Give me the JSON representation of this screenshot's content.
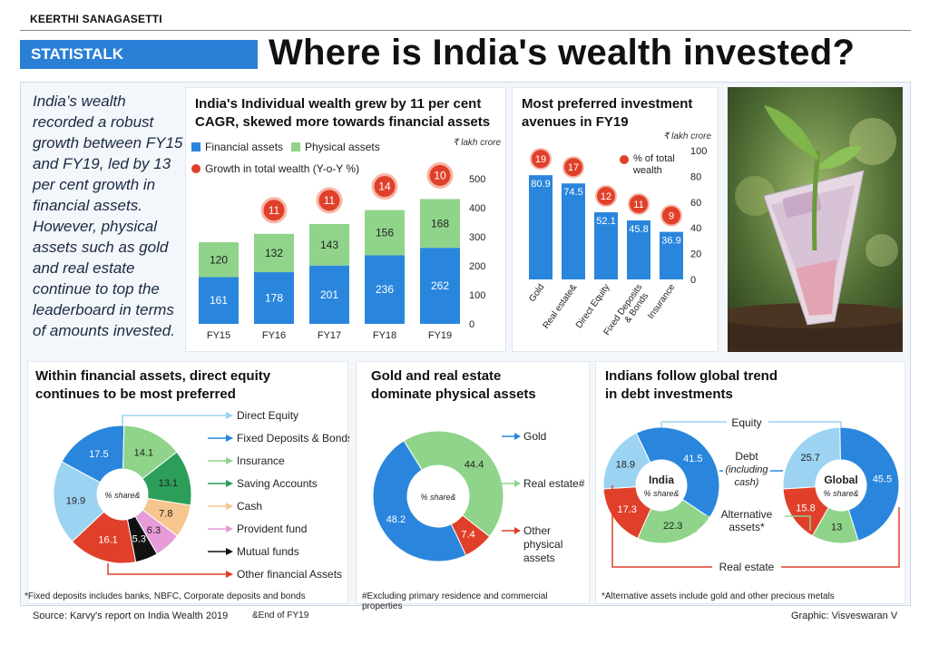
{
  "byline": "KEERTHI SANAGASETTI",
  "tag": "STATISTALK",
  "headline": "Where is India's wealth invested?",
  "intro": "India’s wealth recorded a robust growth between FY15 and FY19, led by 13 per cent growth in financial assets. However, physical assets such as gold and real estate continue to top the leaderboard in terms of amounts invested.",
  "colors": {
    "blue": "#2a86dd",
    "green": "#8fd48a",
    "red": "#e0402a",
    "lightblue": "#9cd3f2",
    "darkgreen": "#2c9e5a",
    "peach": "#f7c58e",
    "pink": "#e79bd9",
    "black": "#111111"
  },
  "panel1": {
    "title_line1": "India's Individual wealth grew by 11 per cent",
    "title_line2": "CAGR, skewed more towards financial assets",
    "legend_financial": "Financial assets",
    "legend_physical": "Physical assets",
    "legend_growth": "Growth in total wealth (Y-o-Y %)",
    "unit": "₹ lakh crore"
  },
  "panel2": {
    "title_line1": "Most preferred investment",
    "title_line2": "avenues in FY19",
    "unit": "₹ lakh crore",
    "legend_line1": "% of total",
    "legend_line2": "wealth"
  },
  "panel3": {
    "title_line1": "Within financial assets, direct equity",
    "title_line2": "continues to be most preferred",
    "center": "% share",
    "center_mark": "&",
    "footnote": "*Fixed deposits includes banks, NBFC, Corporate deposits and bonds"
  },
  "panel4": {
    "title_line1": "Gold and real estate",
    "title_line2": "dominate physical assets",
    "center": "% share",
    "center_mark": "&",
    "footnote": "#Excluding primary residence and commercial properties"
  },
  "panel5": {
    "title_line1": "Indians follow global trend",
    "title_line2": "in debt investments",
    "footnote": "*Alternative assets include gold and other precious metals",
    "india_label": "India",
    "global_label": "Global",
    "share_label": "% share",
    "share_mark": "&",
    "label_equity": "Equity",
    "label_debt": [
      "Debt",
      "(including",
      "cash)"
    ],
    "label_alt": [
      "Alternative",
      "assets*"
    ],
    "label_re": "Real estate"
  },
  "source": "Source: Karvy's report on India Wealth 2019",
  "source_note": "&End of FY19",
  "credit": "Graphic: Visveswaran V",
  "chart_data": [
    {
      "type": "bar",
      "title": "India's Individual wealth grew by 11 per cent CAGR, skewed more towards financial assets",
      "categories": [
        "FY15",
        "FY16",
        "FY17",
        "FY18",
        "FY19"
      ],
      "series": [
        {
          "name": "Financial assets",
          "values": [
            161,
            178,
            201,
            236,
            262
          ]
        },
        {
          "name": "Physical assets",
          "values": [
            120,
            132,
            143,
            156,
            168
          ]
        }
      ],
      "growth": {
        "name": "Growth in total wealth (Y-o-Y %)",
        "values": [
          null,
          11,
          11,
          14,
          10
        ]
      },
      "yticks": [
        0,
        100,
        200,
        300,
        400,
        500
      ],
      "ylim": [
        0,
        500
      ],
      "ylabel": "₹ lakh crore",
      "stacked": true
    },
    {
      "type": "bar",
      "title": "Most preferred investment avenues in FY19",
      "categories": [
        "Gold",
        "Real estate&",
        "Direct Equity",
        "Fixed Deposits & Bonds",
        "Insurance"
      ],
      "category_lines": [
        [
          "Gold"
        ],
        [
          "Real estate&"
        ],
        [
          "Direct Equity"
        ],
        [
          "Fixed Deposits",
          "& Bonds"
        ],
        [
          "Insurance"
        ]
      ],
      "values": [
        80.9,
        74.5,
        52.1,
        45.8,
        36.9
      ],
      "pct_total": {
        "name": "% of total wealth",
        "values": [
          19,
          17,
          12,
          11,
          9
        ]
      },
      "yticks": [
        0,
        20,
        40,
        60,
        80,
        100
      ],
      "ylim": [
        0,
        100
      ],
      "ylabel": "₹ lakh crore"
    },
    {
      "type": "pie",
      "title": "Within financial assets, direct equity continues to be most preferred",
      "labels": [
        "Direct Equity",
        "Fixed Deposits & Bonds",
        "Insurance",
        "Saving Accounts",
        "Cash",
        "Provident fund",
        "Mutual funds",
        "Other financial Assets"
      ],
      "values": [
        19.9,
        17.5,
        14.1,
        13.1,
        7.8,
        6.3,
        5.3,
        16.1
      ],
      "colors": [
        "#9cd3f2",
        "#2a86dd",
        "#8fd48a",
        "#2c9e5a",
        "#f7c58e",
        "#e79bd9",
        "#111111",
        "#e0402a"
      ]
    },
    {
      "type": "pie",
      "title": "Gold and real estate dominate physical assets",
      "labels": [
        "Gold",
        "Real estate#",
        "Other physical assets"
      ],
      "values": [
        48.2,
        44.4,
        7.4
      ],
      "colors": [
        "#2a86dd",
        "#8fd48a",
        "#e0402a"
      ]
    },
    {
      "type": "pie",
      "title": "India",
      "labels": [
        "Equity",
        "Debt (including cash)",
        "Alternative assets*",
        "Real estate"
      ],
      "values": [
        18.9,
        41.5,
        22.3,
        17.3
      ],
      "colors": [
        "#9cd3f2",
        "#2a86dd",
        "#8fd48a",
        "#e0402a"
      ]
    },
    {
      "type": "pie",
      "title": "Global",
      "labels": [
        "Equity",
        "Debt (including cash)",
        "Alternative assets*",
        "Real estate"
      ],
      "values": [
        25.7,
        45.5,
        13.0,
        15.8
      ],
      "colors": [
        "#9cd3f2",
        "#2a86dd",
        "#8fd48a",
        "#e0402a"
      ]
    }
  ]
}
